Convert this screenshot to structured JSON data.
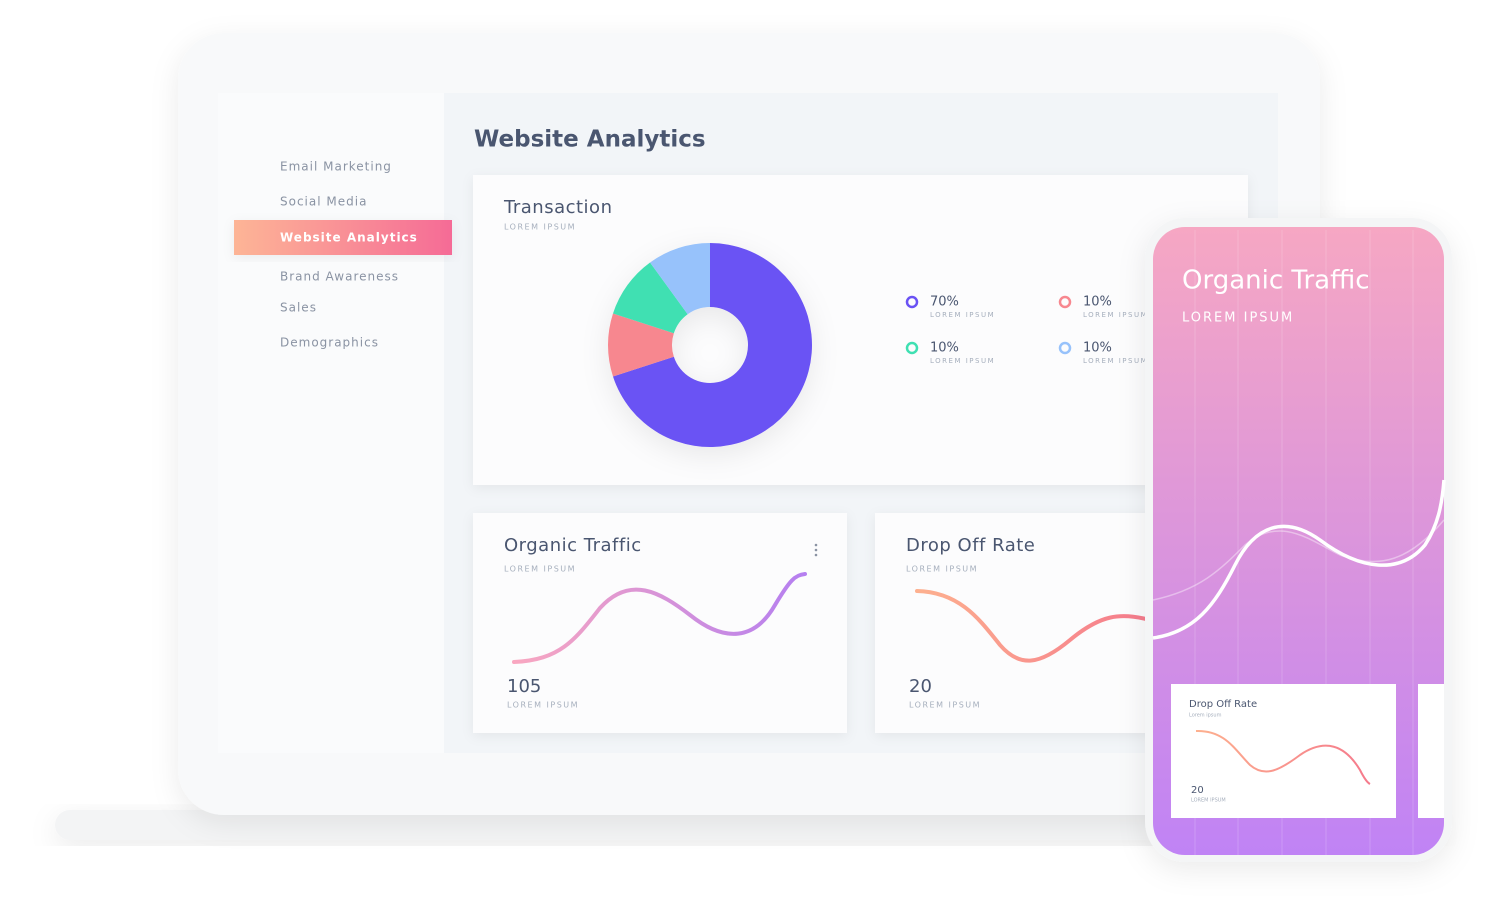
{
  "sidebar": {
    "items": [
      "Email Marketing",
      "Social Media",
      "Website Analytics",
      "Brand Awareness",
      "Sales",
      "Demographics"
    ]
  },
  "header": {
    "title": "Website Analytics"
  },
  "transaction": {
    "title": "Transaction",
    "subtitle": "LOREM IPSUM",
    "segments": [
      {
        "value": 70,
        "label": "70%",
        "caption": "LOREM IPSUM",
        "color": "#6a52f4"
      },
      {
        "value": 10,
        "label": "10%",
        "caption": "LOREM IPSUM",
        "color": "#f7878f"
      },
      {
        "value": 10,
        "label": "10%",
        "caption": "LOREM IPSUM",
        "color": "#3fe0b2"
      },
      {
        "value": 10,
        "label": "10%",
        "caption": "LOREM IPSUM",
        "color": "#97c2fb"
      }
    ]
  },
  "cards": [
    {
      "title": "Organic Traffic",
      "subtitle": "LOREM IPSUM",
      "value": "105",
      "caption": "LOREM IPSUM"
    },
    {
      "title": "Drop Off Rate",
      "subtitle": "LOREM IPSUM",
      "value": "20",
      "caption": "LOREM IPSUM"
    }
  ],
  "phone": {
    "title": "Organic Traffic",
    "subtitle": "LOREM IPSUM",
    "card": {
      "title": "Drop Off Rate",
      "subtitle": "Lorem ipsum",
      "value": "20",
      "caption": "LOREM IPSUM"
    }
  }
}
